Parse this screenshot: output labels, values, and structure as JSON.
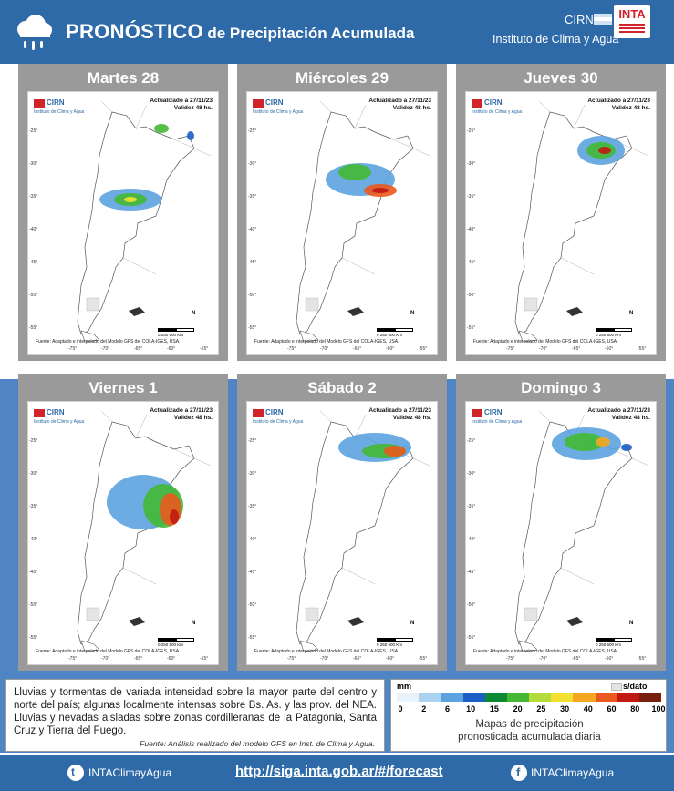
{
  "header": {
    "title_main": "PRONÓSTICO",
    "title_rest": "de Precipitación Acumulada",
    "brand_cirn": "CIRN",
    "brand_inta": "INTA",
    "brand_institute": "Instituto de Clima y Agua",
    "icon": "rain-cloud-icon"
  },
  "map_common": {
    "logo_cirn": "CIRN",
    "logo_institute": "Instituto de Clima y Agua",
    "updated": "Actualizado a 27/11/23",
    "validity": "Validez 48 hs.",
    "source": "Fuente: Adaptado e interpolado del Modelo GFS del COLA-IGES, USA.",
    "lat_labels": [
      "-25°",
      "-30°",
      "-35°",
      "-40°",
      "-45°",
      "-50°",
      "-55°"
    ],
    "lon_labels": [
      "-75°",
      "-70°",
      "-65°",
      "-60°",
      "-55°"
    ],
    "scale_label": "0   250   500 Km",
    "north": "N"
  },
  "days": [
    {
      "title": "Martes 28"
    },
    {
      "title": "Miércoles 29"
    },
    {
      "title": "Jueves 30"
    },
    {
      "title": "Viernes 1"
    },
    {
      "title": "Sábado 2"
    },
    {
      "title": "Domingo 3"
    }
  ],
  "description": {
    "text": "Lluvias y tormentas de variada intensidad sobre la mayor parte del centro y norte del país; algunas localmente intensas sobre Bs. As. y las prov. del NEA. Lluvias y nevadas aisladas sobre zonas cordilleranas de la Patagonia, Santa Cruz y Tierra del Fuego.",
    "source": "Fuente: Análisis realizado del modelo GFS en Inst. de Clima y Agua."
  },
  "legend": {
    "unit": "mm",
    "no_data": "s/dato",
    "ticks": [
      "0",
      "2",
      "6",
      "10",
      "15",
      "20",
      "25",
      "30",
      "40",
      "60",
      "80",
      "100"
    ],
    "colors": [
      "#e8f3fb",
      "#a9d3f0",
      "#5ca3e0",
      "#1c5fc4",
      "#0f8a34",
      "#44b833",
      "#b3dc3a",
      "#f4e12f",
      "#f5a623",
      "#ea5a1e",
      "#c21a12",
      "#7a1e0e"
    ],
    "caption_line1": "Mapas de precipitación",
    "caption_line2": "pronosticada acumulada diaria"
  },
  "footer": {
    "twitter": "INTAClimayAgua",
    "url": "http://siga.inta.gob.ar/#/forecast",
    "facebook": "INTAClimayAgua"
  }
}
